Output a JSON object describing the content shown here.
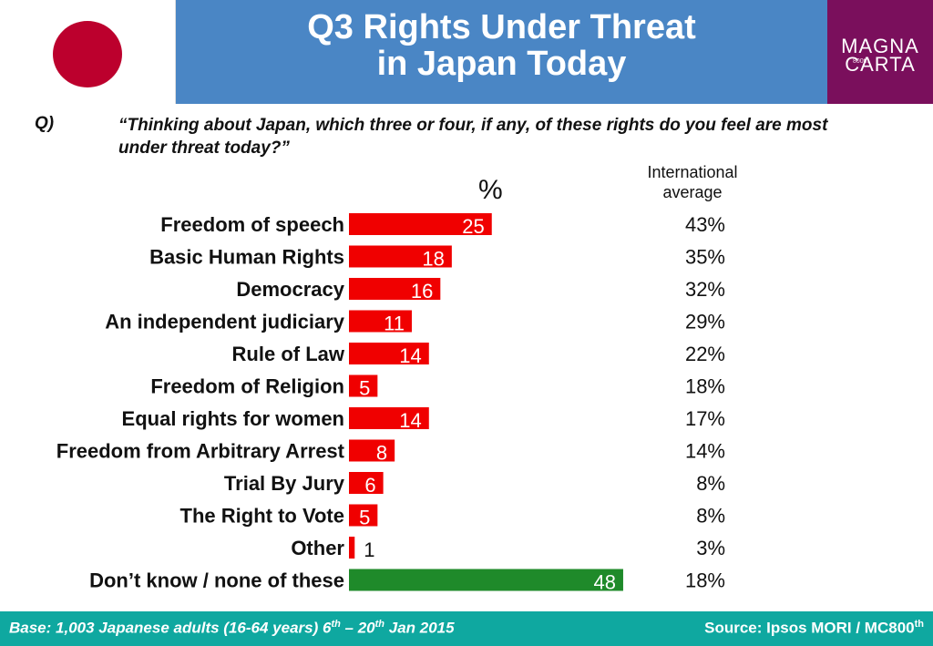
{
  "colors": {
    "japan_red": "#bc002d",
    "title_blue": "#4a86c5",
    "logo_purple": "#7a0f5c",
    "footer_teal": "#0fa8a0",
    "bar_red": "#f00000",
    "bar_green": "#1f8a2a"
  },
  "header": {
    "title_line1": "Q3 Rights Under Threat",
    "title_line2": "in Japan Today",
    "logo_line1": "MAGNA",
    "logo_line2": "CARTA",
    "logo_small": "800th"
  },
  "question": {
    "label": "Q)",
    "text": "“Thinking about Japan, which three or four, if any, of these rights do you feel are most under threat today?”"
  },
  "chart_data": {
    "type": "bar",
    "orientation": "horizontal",
    "unit_header": "%",
    "secondary_column_header": "International average",
    "categories": [
      "Freedom of speech",
      "Basic Human Rights",
      "Democracy",
      "An independent judiciary",
      "Rule of Law",
      "Freedom of Religion",
      "Equal rights for women",
      "Freedom from Arbitrary Arrest",
      "Trial By Jury",
      "The Right to Vote",
      "Other",
      "Don’t know / none of these"
    ],
    "values": [
      25,
      18,
      16,
      11,
      14,
      5,
      14,
      8,
      6,
      5,
      1,
      48
    ],
    "highlight_last": true,
    "international_average": [
      "43%",
      "35%",
      "32%",
      "29%",
      "22%",
      "18%",
      "17%",
      "14%",
      "8%",
      "8%",
      "3%",
      "18%"
    ],
    "xlim": [
      0,
      50
    ]
  },
  "footer": {
    "base_prefix": "Base: 1,003 Japanese adults (16-64 years) 6",
    "base_sup1": "th",
    "base_mid": " – 20",
    "base_sup2": "th",
    "base_suffix": " Jan 2015",
    "source_prefix": "Source: Ipsos MORI / MC800",
    "source_sup": "th"
  }
}
